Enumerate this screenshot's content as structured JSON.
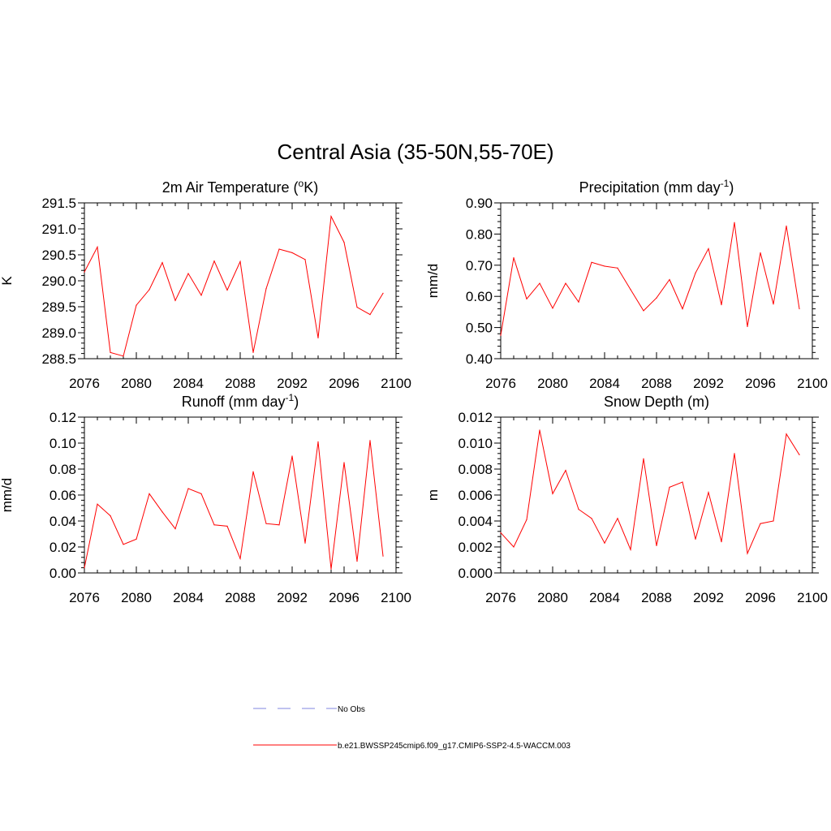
{
  "title": "Central Asia (35-50N,55-70E)",
  "colors": {
    "model": "#ff0000",
    "obs": "#9a9ee6",
    "axis": "#000000"
  },
  "legend": {
    "entries": [
      {
        "label": "No Obs",
        "style": "dashed",
        "color": "#9a9ee6"
      },
      {
        "label": "b.e21.BWSSP245cmip6.f09_g17.CMIP6-SSP2-4.5-WACCM.003",
        "style": "solid",
        "color": "#ff0000"
      }
    ]
  },
  "chart_data": [
    {
      "type": "line",
      "id": "temp",
      "title": "2m Air Temperature (",
      "title_sup": "o",
      "title_tail": "K)",
      "xlabel": "",
      "ylabel": "K",
      "xlim": [
        2076,
        2100
      ],
      "ylim": [
        288.5,
        291.5
      ],
      "xticks": [
        2076,
        2080,
        2084,
        2088,
        2092,
        2096,
        2100
      ],
      "yticks": [
        "288.5",
        "289.0",
        "289.5",
        "290.0",
        "290.5",
        "291.0",
        "291.5"
      ],
      "x": [
        2076,
        2077,
        2078,
        2079,
        2080,
        2081,
        2082,
        2083,
        2084,
        2085,
        2086,
        2087,
        2088,
        2089,
        2090,
        2091,
        2092,
        2093,
        2094,
        2095,
        2096,
        2097,
        2098,
        2099
      ],
      "series": [
        {
          "name": "b.e21.BWSSP245cmip6.f09_g17.CMIP6-SSP2-4.5-WACCM.003",
          "values": [
            290.17,
            290.65,
            288.62,
            288.55,
            289.53,
            289.83,
            290.35,
            289.62,
            290.14,
            289.72,
            290.38,
            289.82,
            290.37,
            288.62,
            289.85,
            290.61,
            290.54,
            290.41,
            288.9,
            291.24,
            290.74,
            289.49,
            289.35,
            289.76
          ]
        }
      ]
    },
    {
      "type": "line",
      "id": "precip",
      "title": "Precipitation (mm day",
      "title_sup": "-1",
      "title_tail": ")",
      "xlabel": "",
      "ylabel": "mm/d",
      "xlim": [
        2076,
        2100
      ],
      "ylim": [
        0.4,
        0.9
      ],
      "xticks": [
        2076,
        2080,
        2084,
        2088,
        2092,
        2096,
        2100
      ],
      "yticks": [
        "0.40",
        "0.50",
        "0.60",
        "0.70",
        "0.80",
        "0.90"
      ],
      "x": [
        2076,
        2077,
        2078,
        2079,
        2080,
        2081,
        2082,
        2083,
        2084,
        2085,
        2086,
        2087,
        2088,
        2089,
        2090,
        2091,
        2092,
        2093,
        2094,
        2095,
        2096,
        2097,
        2098,
        2099
      ],
      "series": [
        {
          "name": "b.e21.BWSSP245cmip6.f09_g17.CMIP6-SSP2-4.5-WACCM.003",
          "values": [
            0.475,
            0.724,
            0.592,
            0.642,
            0.562,
            0.642,
            0.582,
            0.709,
            0.697,
            0.691,
            0.622,
            0.554,
            0.595,
            0.654,
            0.56,
            0.675,
            0.753,
            0.573,
            0.837,
            0.503,
            0.74,
            0.575,
            0.826,
            0.56
          ]
        }
      ]
    },
    {
      "type": "line",
      "id": "runoff",
      "title": "Runoff (mm day",
      "title_sup": "-1",
      "title_tail": ")",
      "xlabel": "",
      "ylabel": "mm/d",
      "xlim": [
        2076,
        2100
      ],
      "ylim": [
        0.0,
        0.12
      ],
      "xticks": [
        2076,
        2080,
        2084,
        2088,
        2092,
        2096,
        2100
      ],
      "yticks": [
        "0.00",
        "0.02",
        "0.04",
        "0.06",
        "0.08",
        "0.10",
        "0.12"
      ],
      "x": [
        2076,
        2077,
        2078,
        2079,
        2080,
        2081,
        2082,
        2083,
        2084,
        2085,
        2086,
        2087,
        2088,
        2089,
        2090,
        2091,
        2092,
        2093,
        2094,
        2095,
        2096,
        2097,
        2098,
        2099
      ],
      "series": [
        {
          "name": "b.e21.BWSSP245cmip6.f09_g17.CMIP6-SSP2-4.5-WACCM.003",
          "values": [
            0.004,
            0.053,
            0.044,
            0.022,
            0.026,
            0.061,
            0.047,
            0.034,
            0.065,
            0.061,
            0.037,
            0.036,
            0.011,
            0.078,
            0.038,
            0.037,
            0.09,
            0.023,
            0.101,
            0.003,
            0.085,
            0.009,
            0.102,
            0.013
          ]
        }
      ]
    },
    {
      "type": "line",
      "id": "snow",
      "title": "Snow Depth (m)",
      "title_sup": "",
      "title_tail": "",
      "xlabel": "",
      "ylabel": "m",
      "xlim": [
        2076,
        2100
      ],
      "ylim": [
        0.0,
        0.012
      ],
      "xticks": [
        2076,
        2080,
        2084,
        2088,
        2092,
        2096,
        2100
      ],
      "yticks": [
        "0.000",
        "0.002",
        "0.004",
        "0.006",
        "0.008",
        "0.010",
        "0.012"
      ],
      "x": [
        2076,
        2077,
        2078,
        2079,
        2080,
        2081,
        2082,
        2083,
        2084,
        2085,
        2086,
        2087,
        2088,
        2089,
        2090,
        2091,
        2092,
        2093,
        2094,
        2095,
        2096,
        2097,
        2098,
        2099
      ],
      "series": [
        {
          "name": "b.e21.BWSSP245cmip6.f09_g17.CMIP6-SSP2-4.5-WACCM.003",
          "values": [
            0.0031,
            0.002,
            0.0041,
            0.011,
            0.0061,
            0.0079,
            0.0049,
            0.0042,
            0.0023,
            0.0042,
            0.0018,
            0.0088,
            0.0021,
            0.0066,
            0.007,
            0.0026,
            0.0062,
            0.0024,
            0.0092,
            0.0015,
            0.0038,
            0.004,
            0.0107,
            0.0091
          ]
        }
      ]
    }
  ]
}
